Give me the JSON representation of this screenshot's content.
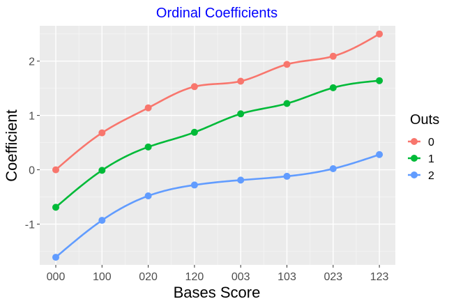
{
  "chart_data": {
    "type": "line",
    "title": "Ordinal Coefficients",
    "title_color": "#0000FF",
    "xlabel": "Bases Score",
    "ylabel": "Coefficient",
    "categories": [
      "000",
      "100",
      "020",
      "120",
      "003",
      "103",
      "023",
      "123"
    ],
    "ylim": [
      -1.75,
      2.65
    ],
    "yticks": [
      -1,
      0,
      1,
      2
    ],
    "ytick_labels": [
      "-1",
      "0",
      "1",
      "2"
    ],
    "grid": true,
    "panel_background": "#EBEBEB",
    "legend": {
      "title": "Outs",
      "position": "right"
    },
    "series": [
      {
        "name": "0",
        "color": "#F8766D",
        "values": [
          0.0,
          0.68,
          1.14,
          1.53,
          1.63,
          1.94,
          2.09,
          2.5
        ]
      },
      {
        "name": "1",
        "color": "#00BA38",
        "values": [
          -0.69,
          -0.01,
          0.42,
          0.69,
          1.03,
          1.22,
          1.51,
          1.64
        ]
      },
      {
        "name": "2",
        "color": "#619CFF",
        "values": [
          -1.61,
          -0.93,
          -0.48,
          -0.28,
          -0.19,
          -0.12,
          0.02,
          0.28
        ]
      }
    ]
  }
}
